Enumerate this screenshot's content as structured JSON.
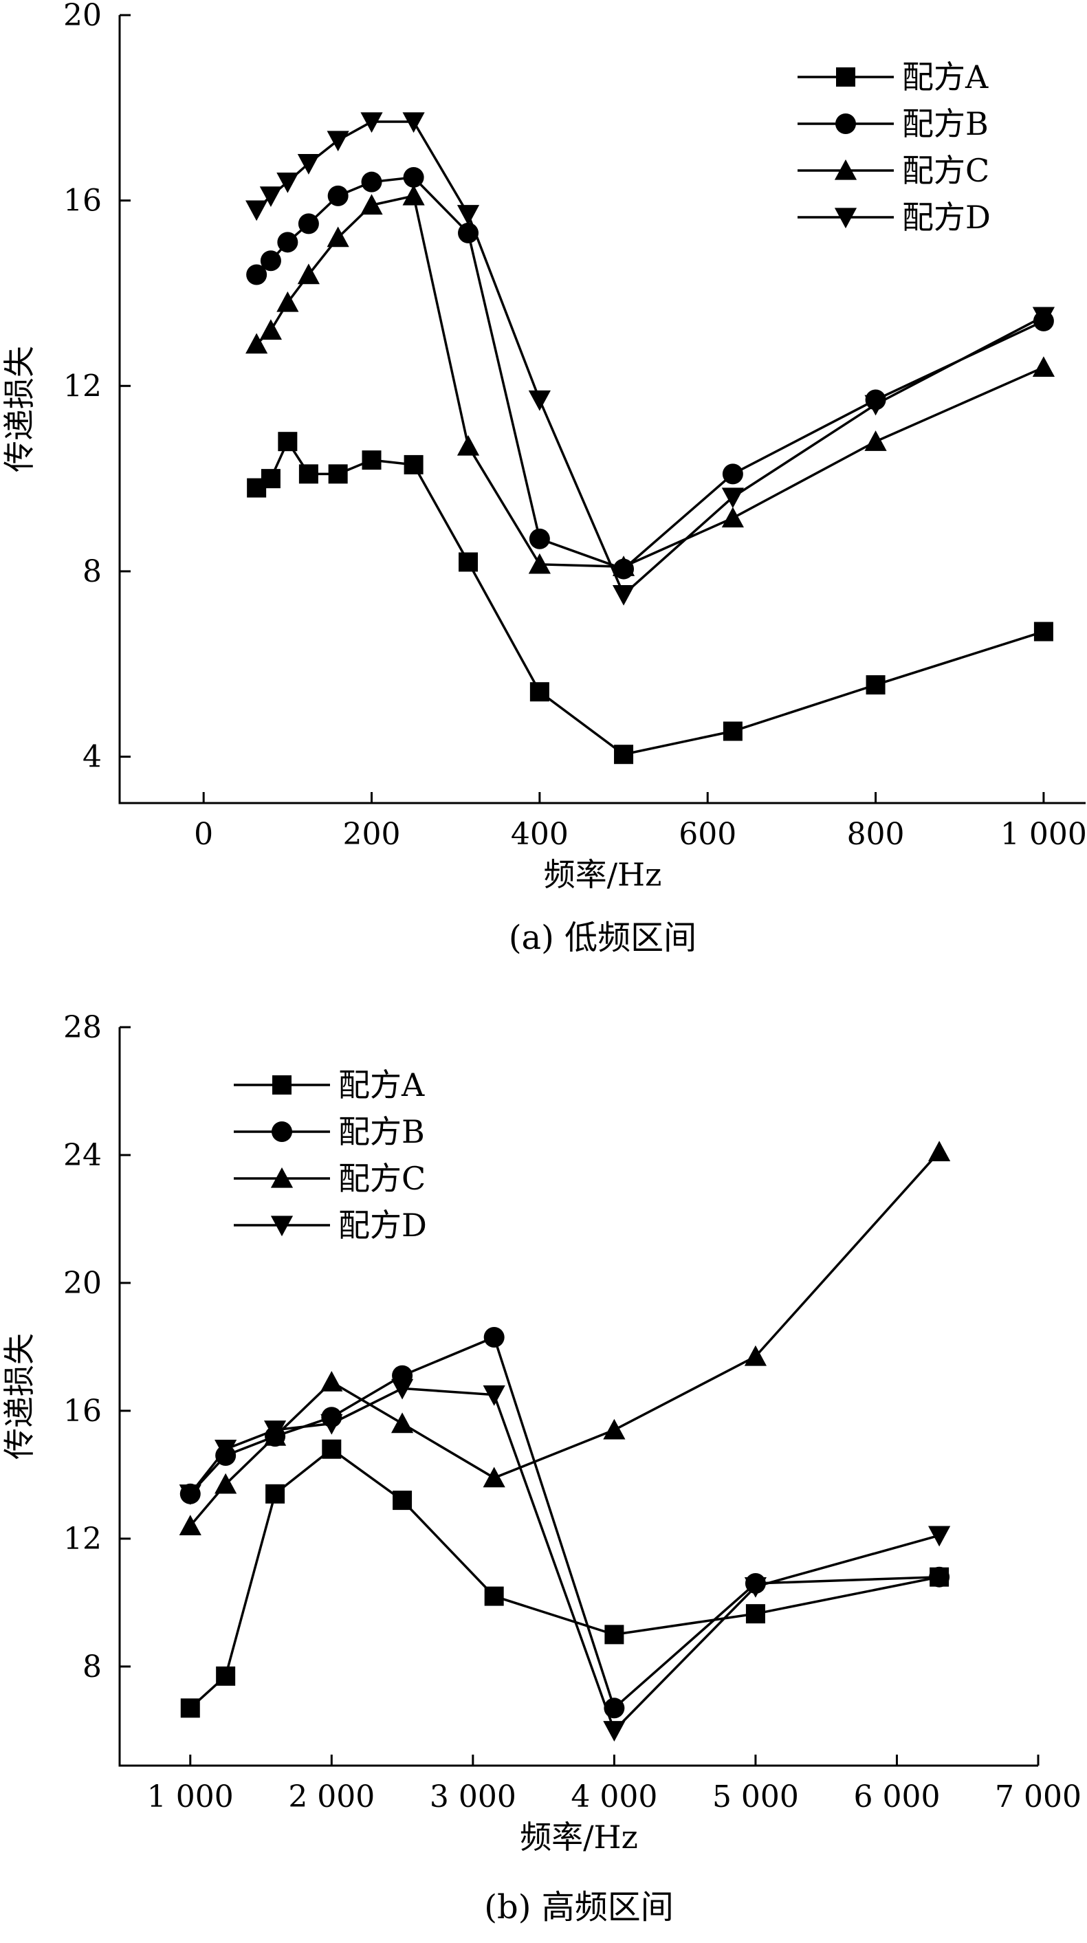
{
  "chart_data": [
    {
      "type": "line",
      "caption": "(a) 低频区间",
      "xlabel": "频率/Hz",
      "ylabel": "传递损失",
      "xlim": [
        -100,
        1050
      ],
      "ylim": [
        3,
        20
      ],
      "xticks": [
        0,
        200,
        400,
        600,
        800,
        1000
      ],
      "xtick_labels": [
        "0",
        "200",
        "400",
        "600",
        "800",
        "1 000"
      ],
      "yticks": [
        4,
        8,
        12,
        16,
        20
      ],
      "ytick_labels": [
        "4",
        "8",
        "12",
        "16",
        "20"
      ],
      "legend_position": "top-right",
      "x": [
        63,
        80,
        100,
        125,
        160,
        200,
        250,
        315,
        400,
        500,
        630,
        800,
        1000
      ],
      "series": [
        {
          "name": "配方A",
          "marker": "square",
          "values": [
            9.8,
            10.0,
            10.8,
            10.1,
            10.1,
            10.4,
            10.3,
            8.2,
            5.4,
            4.05,
            4.55,
            5.55,
            6.7
          ]
        },
        {
          "name": "配方B",
          "marker": "circle",
          "values": [
            14.4,
            14.7,
            15.1,
            15.5,
            16.1,
            16.4,
            16.5,
            15.3,
            8.7,
            8.05,
            10.1,
            11.7,
            13.4
          ]
        },
        {
          "name": "配方C",
          "marker": "triangle-up",
          "values": [
            12.9,
            13.2,
            13.8,
            14.4,
            15.2,
            15.9,
            16.1,
            10.7,
            8.15,
            8.1,
            9.15,
            10.8,
            12.4
          ]
        },
        {
          "name": "配方D",
          "marker": "triangle-down",
          "values": [
            15.8,
            16.1,
            16.4,
            16.8,
            17.3,
            17.7,
            17.7,
            15.7,
            11.7,
            7.5,
            9.6,
            11.6,
            13.5
          ]
        }
      ]
    },
    {
      "type": "line",
      "caption": "(b) 高频区间",
      "xlabel": "频率/Hz",
      "ylabel": "传递损失",
      "xlim": [
        500,
        7000
      ],
      "ylim": [
        4.9,
        28
      ],
      "xticks": [
        1000,
        2000,
        3000,
        4000,
        5000,
        6000,
        7000
      ],
      "xtick_labels": [
        "1 000",
        "2 000",
        "3 000",
        "4 000",
        "5 000",
        "6 000",
        "7 000"
      ],
      "yticks": [
        8,
        12,
        16,
        20,
        24,
        28
      ],
      "ytick_labels": [
        "8",
        "12",
        "16",
        "20",
        "24",
        "28"
      ],
      "legend_position": "top-left",
      "x": [
        1000,
        1250,
        1600,
        2000,
        2500,
        3150,
        4000,
        5000,
        6300
      ],
      "series": [
        {
          "name": "配方A",
          "marker": "square",
          "values": [
            6.7,
            7.7,
            13.4,
            14.8,
            13.2,
            10.2,
            9.0,
            9.65,
            10.8
          ]
        },
        {
          "name": "配方B",
          "marker": "circle",
          "values": [
            13.4,
            14.6,
            15.2,
            15.8,
            17.1,
            18.3,
            6.7,
            10.6,
            10.8
          ]
        },
        {
          "name": "配方C",
          "marker": "triangle-up",
          "values": [
            12.4,
            13.7,
            15.2,
            16.9,
            15.6,
            13.9,
            15.4,
            17.7,
            24.1
          ]
        },
        {
          "name": "配方D",
          "marker": "triangle-down",
          "values": [
            13.4,
            14.8,
            15.4,
            15.6,
            16.7,
            16.5,
            6.0,
            10.5,
            12.1
          ]
        }
      ]
    }
  ]
}
